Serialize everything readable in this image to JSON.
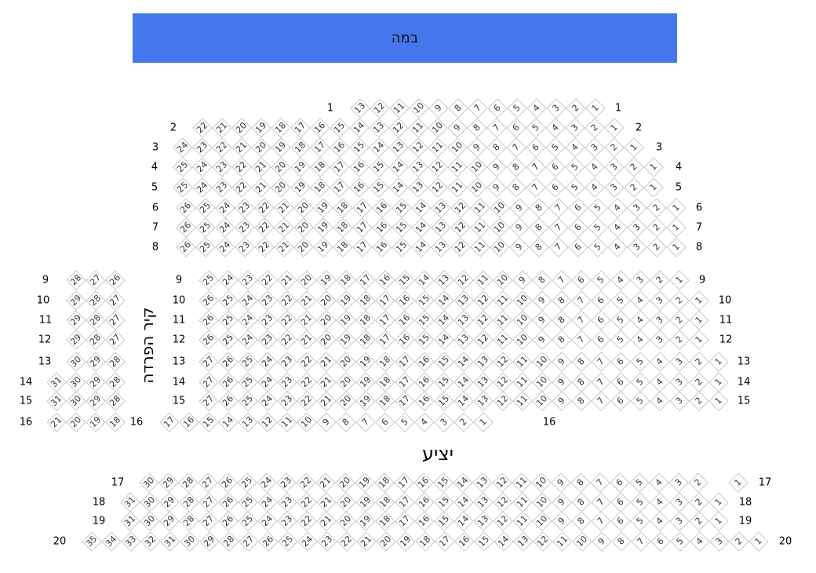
{
  "stage": {
    "label": "במה",
    "color": "#4477EE"
  },
  "wall_label": "קיר הפרדה",
  "balcony_label": "יציע",
  "seat_border_color": "#C8C8C8",
  "rows": [
    {
      "labels": [
        "1",
        "1"
      ],
      "blocks": [
        {
          "from": 13,
          "to": 1
        }
      ]
    },
    {
      "labels": [
        "2",
        "2"
      ],
      "blocks": [
        {
          "from": 22,
          "to": 1
        }
      ]
    },
    {
      "labels": [
        "3",
        "3"
      ],
      "blocks": [
        {
          "from": 24,
          "to": 1
        }
      ]
    },
    {
      "labels": [
        "4",
        "4"
      ],
      "blocks": [
        {
          "from": 25,
          "to": 1
        }
      ]
    },
    {
      "labels": [
        "5",
        "5"
      ],
      "blocks": [
        {
          "from": 25,
          "to": 1
        }
      ]
    },
    {
      "labels": [
        "6",
        "6"
      ],
      "blocks": [
        {
          "from": 26,
          "to": 1
        }
      ]
    },
    {
      "labels": [
        "7",
        "7"
      ],
      "blocks": [
        {
          "from": 26,
          "to": 1
        }
      ]
    },
    {
      "labels": [
        "8",
        "8"
      ],
      "blocks": [
        {
          "from": 26,
          "to": 1
        }
      ]
    },
    {
      "labels": [
        "9",
        "9",
        "9"
      ],
      "blocks": [
        {
          "from": 28,
          "to": 26
        },
        {
          "from": 25,
          "to": 1
        }
      ]
    },
    {
      "labels": [
        "10",
        "10",
        "10"
      ],
      "blocks": [
        {
          "from": 29,
          "to": 27
        },
        {
          "from": 26,
          "to": 1
        }
      ]
    },
    {
      "labels": [
        "11",
        "11",
        "11"
      ],
      "blocks": [
        {
          "from": 29,
          "to": 27
        },
        {
          "from": 26,
          "to": 1
        }
      ]
    },
    {
      "labels": [
        "12",
        "12",
        "12"
      ],
      "blocks": [
        {
          "from": 29,
          "to": 27
        },
        {
          "from": 26,
          "to": 1
        }
      ]
    },
    {
      "labels": [
        "13",
        "13",
        "13"
      ],
      "blocks": [
        {
          "from": 30,
          "to": 28
        },
        {
          "from": 27,
          "to": 1
        }
      ]
    },
    {
      "labels": [
        "14",
        "14",
        "14"
      ],
      "blocks": [
        {
          "from": 31,
          "to": 28
        },
        {
          "from": 27,
          "to": 1
        }
      ]
    },
    {
      "labels": [
        "15",
        "15",
        "15"
      ],
      "blocks": [
        {
          "from": 31,
          "to": 28
        },
        {
          "from": 27,
          "to": 1
        }
      ]
    },
    {
      "labels": [
        "16",
        "16",
        "16"
      ],
      "blocks": [
        {
          "from": 21,
          "to": 18
        },
        {
          "from": 17,
          "to": 1
        }
      ]
    },
    {
      "labels": [
        "17",
        "17"
      ],
      "blocks": [
        {
          "from": 30,
          "to": 2
        },
        {
          "from": 1,
          "to": 1
        }
      ]
    },
    {
      "labels": [
        "18",
        "18"
      ],
      "blocks": [
        {
          "from": 31,
          "to": 1
        }
      ]
    },
    {
      "labels": [
        "19",
        "19"
      ],
      "blocks": [
        {
          "from": 31,
          "to": 1
        }
      ]
    },
    {
      "labels": [
        "20",
        "20"
      ],
      "blocks": [
        {
          "from": 35,
          "to": 1
        }
      ]
    }
  ]
}
